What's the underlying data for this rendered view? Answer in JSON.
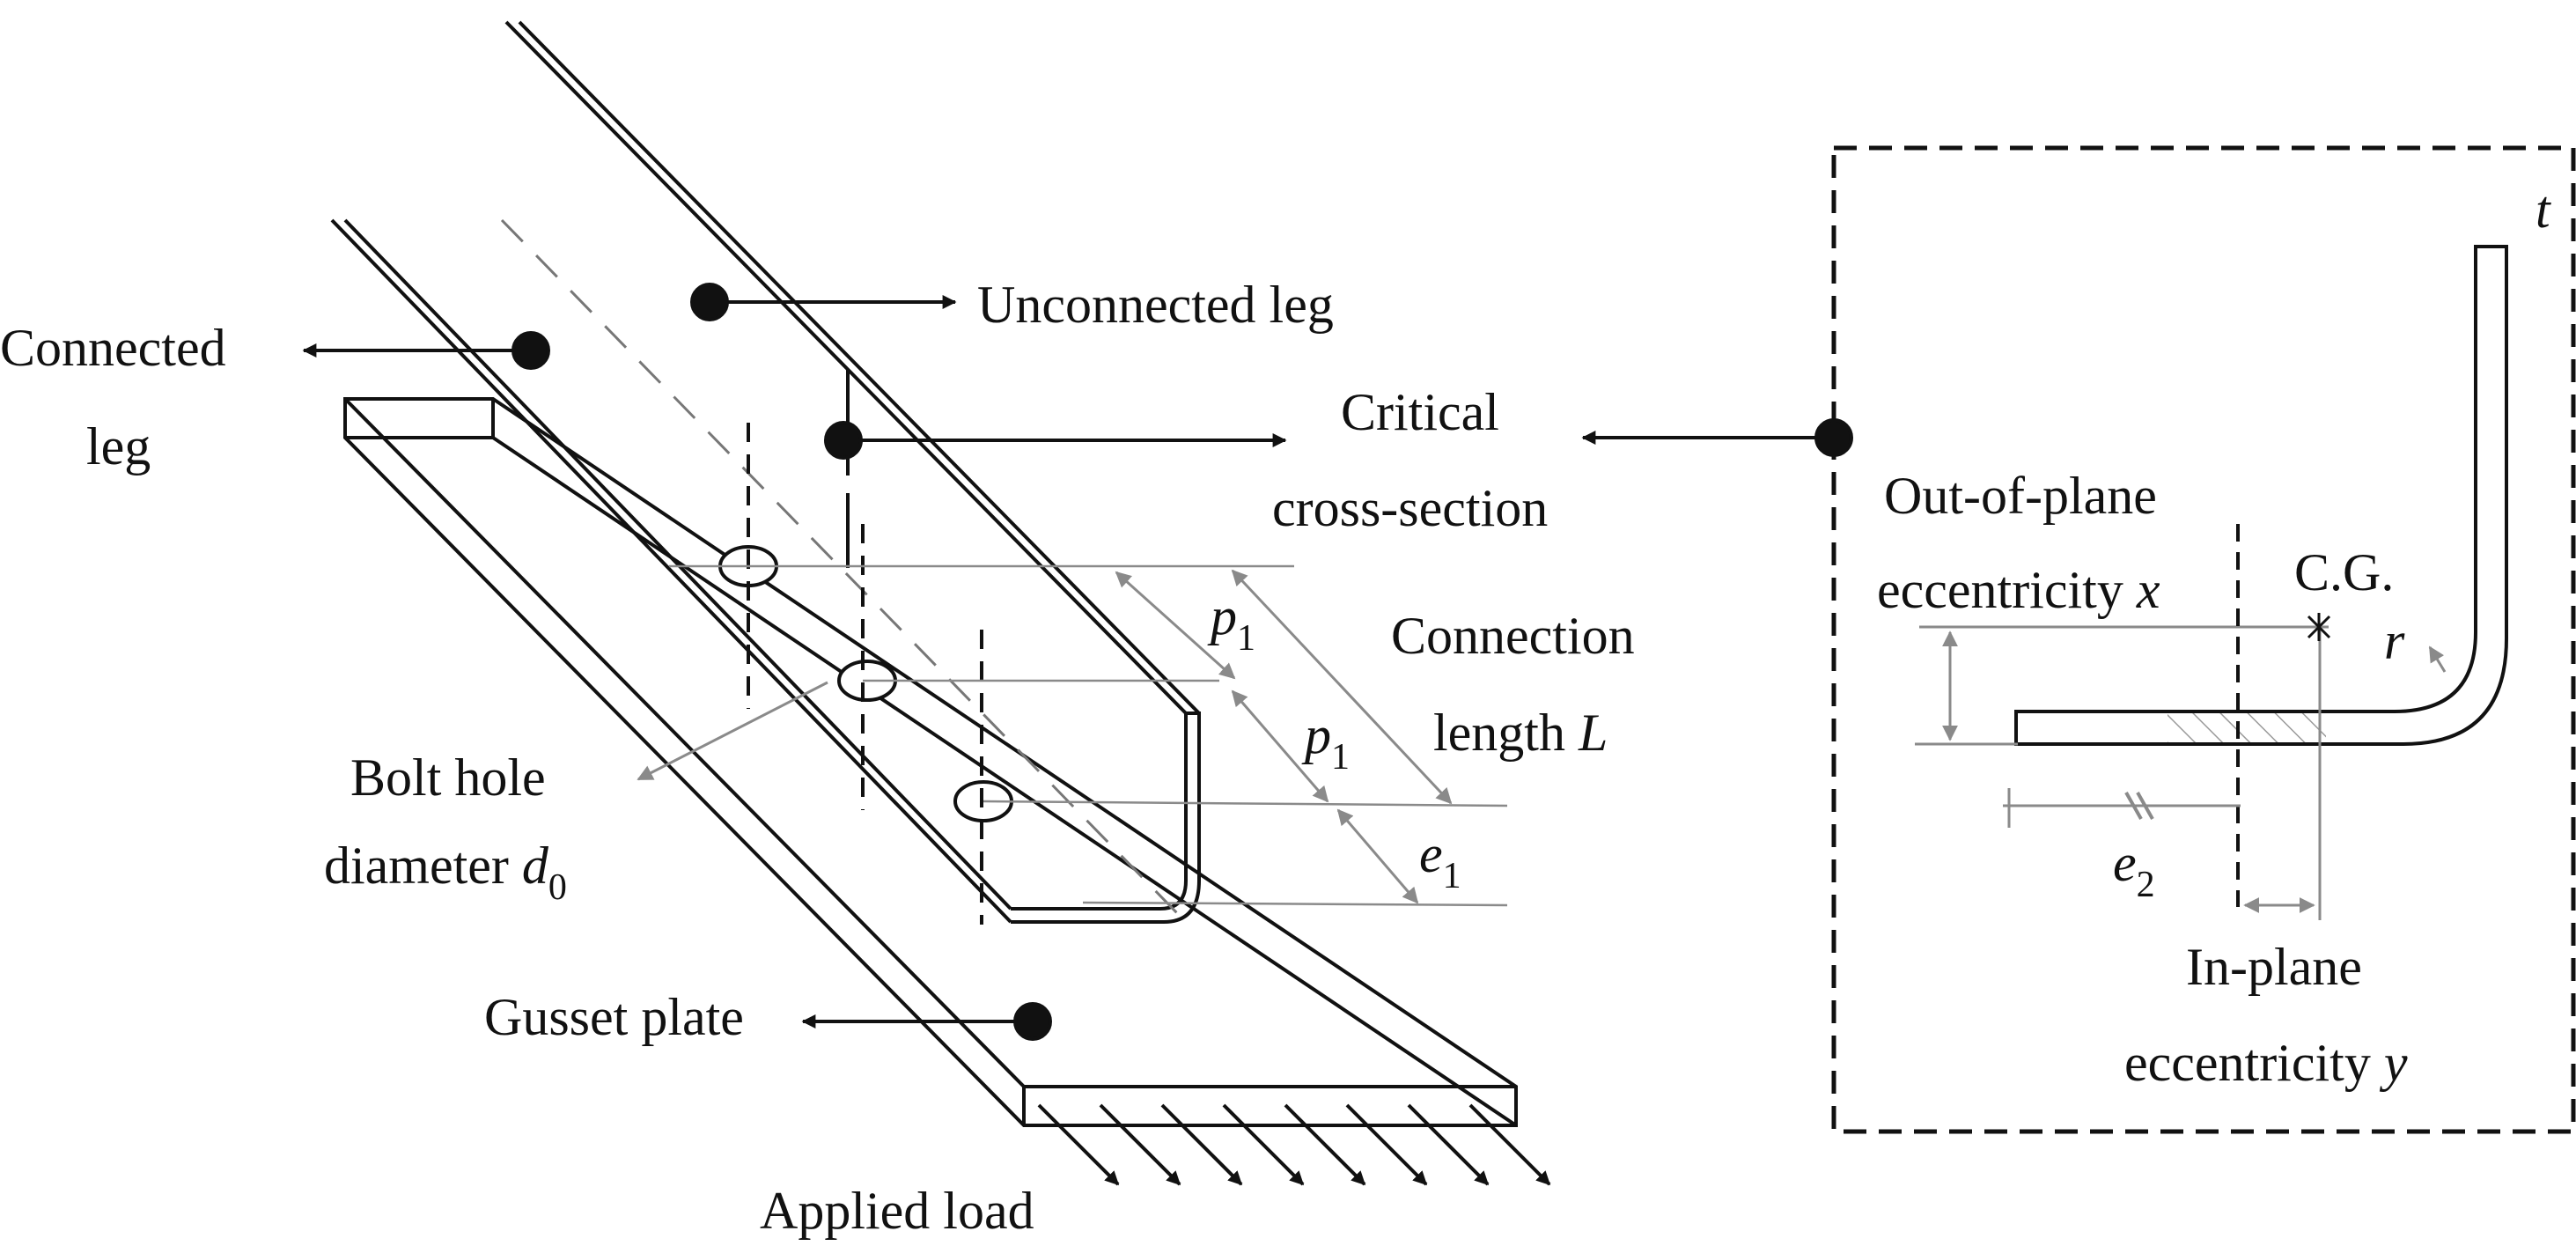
{
  "labels": {
    "connected_leg_1": "Connected",
    "connected_leg_2": "leg",
    "unconnected_leg": "Unconnected leg",
    "critical_1": "Critical",
    "critical_2": "cross-section",
    "connection_length_1": "Connection",
    "connection_length_2": "length ",
    "connection_length_sym": "L",
    "bolt_hole_1": "Bolt hole",
    "bolt_hole_2": "diameter ",
    "bolt_hole_sym": "d",
    "bolt_hole_sub": "0",
    "gusset_plate": "Gusset plate",
    "applied_load": "Applied load",
    "p1_a_sym": "p",
    "p1_a_sub": "1",
    "p1_b_sym": "p",
    "p1_b_sub": "1",
    "e1_sym": "e",
    "e1_sub": "1",
    "out_of_plane_1": "Out-of-plane",
    "out_of_plane_2": "eccentricity ",
    "out_of_plane_sym": "x",
    "cg": "C.G.",
    "t_sym": "t",
    "r_sym": "r",
    "e2_sym": "e",
    "e2_sub": "2",
    "in_plane_1": "In-plane",
    "in_plane_2": "eccentricity ",
    "in_plane_sym": "y"
  },
  "colors": {
    "ink": "#111111",
    "dimension": "#8a8a8a",
    "hatch": "#9a9a9a"
  }
}
